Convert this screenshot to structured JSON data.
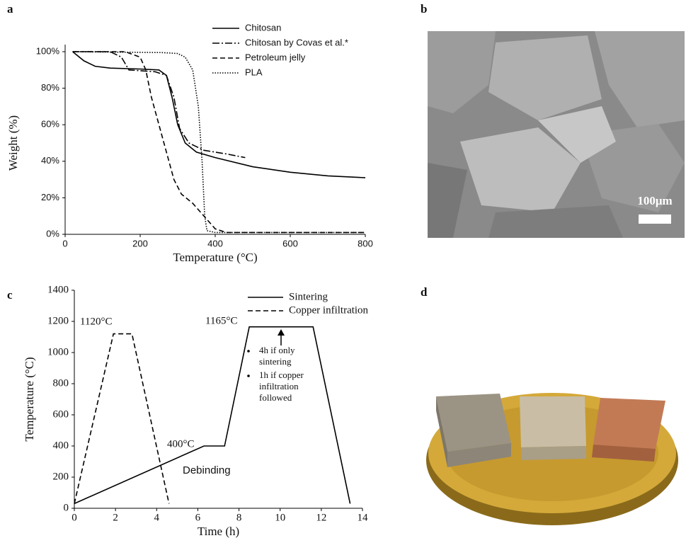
{
  "panel_labels": [
    "a",
    "b",
    "c",
    "d"
  ],
  "scale_bar_label": "100μm",
  "chart_data": [
    {
      "type": "line",
      "x_label": "Temperature (°C)",
      "y_label": "Weight (%)",
      "xlim": [
        0,
        800
      ],
      "xticks": [
        0,
        200,
        400,
        600,
        800
      ],
      "ylim": [
        0,
        100
      ],
      "yticks": [
        {
          "value": 0,
          "label": "0%"
        },
        {
          "value": 20,
          "label": "20%"
        },
        {
          "value": 40,
          "label": "40%"
        },
        {
          "value": 60,
          "label": "60%"
        },
        {
          "value": 80,
          "label": "80%"
        },
        {
          "value": 100,
          "label": "100%"
        }
      ],
      "legend": "upper right",
      "series": [
        {
          "name": "Chitosan",
          "color": "#000000",
          "dash": "solid",
          "x": [
            20,
            50,
            80,
            120,
            200,
            250,
            270,
            285,
            300,
            320,
            350,
            400,
            500,
            600,
            700,
            800
          ],
          "values": [
            100,
            95,
            92,
            91,
            90.5,
            90,
            87,
            75,
            60,
            50,
            45,
            42,
            37,
            34,
            32,
            31
          ]
        },
        {
          "name": "Chitosan by Covas et al.*",
          "color": "#000000",
          "dash": "dashdot",
          "x": [
            20,
            120,
            150,
            170,
            240,
            270,
            290,
            305,
            330,
            370,
            430,
            480
          ],
          "values": [
            100,
            100,
            97,
            90,
            89,
            87,
            75,
            58,
            50,
            46,
            44,
            42
          ]
        },
        {
          "name": "Petroleum jelly",
          "color": "#000000",
          "dash": "dashed",
          "x": [
            20,
            160,
            200,
            215,
            230,
            250,
            270,
            290,
            310,
            340,
            370,
            400,
            430,
            800
          ],
          "values": [
            100,
            100,
            97,
            90,
            75,
            60,
            45,
            30,
            22,
            17,
            10,
            3,
            1,
            1
          ]
        },
        {
          "name": "PLA",
          "color": "#000000",
          "dash": "dotted",
          "x": [
            20,
            260,
            300,
            320,
            340,
            355,
            365,
            372,
            378,
            400,
            800
          ],
          "values": [
            100,
            99.5,
            99,
            97,
            90,
            70,
            40,
            10,
            2,
            1,
            1
          ]
        }
      ]
    },
    {
      "type": "line",
      "x_label": "Time (h)",
      "y_label": "Temperature (°C)",
      "xlim": [
        0,
        14
      ],
      "xticks": [
        0,
        2,
        4,
        6,
        8,
        10,
        12,
        14
      ],
      "ylim": [
        0,
        1400
      ],
      "yticks": [
        0,
        200,
        400,
        600,
        800,
        1000,
        1200,
        1400
      ],
      "legend": "upper right",
      "annotations": [
        "1120°C",
        "1165°C",
        "400°C",
        "Debinding"
      ],
      "notes": [
        [
          "4h if only",
          "sintering"
        ],
        [
          "1h if copper",
          "infiltration",
          "followed"
        ]
      ],
      "series": [
        {
          "name": "Sintering",
          "color": "#000000",
          "dash": "solid",
          "x": [
            0,
            6.3,
            7.3,
            8.5,
            11.6,
            13.4
          ],
          "values": [
            30,
            400,
            400,
            1165,
            1165,
            30
          ]
        },
        {
          "name": "Copper infiltration",
          "color": "#000000",
          "dash": "dashed",
          "x": [
            0,
            1.9,
            2.8,
            4.6
          ],
          "values": [
            30,
            1120,
            1120,
            30
          ]
        }
      ]
    }
  ]
}
